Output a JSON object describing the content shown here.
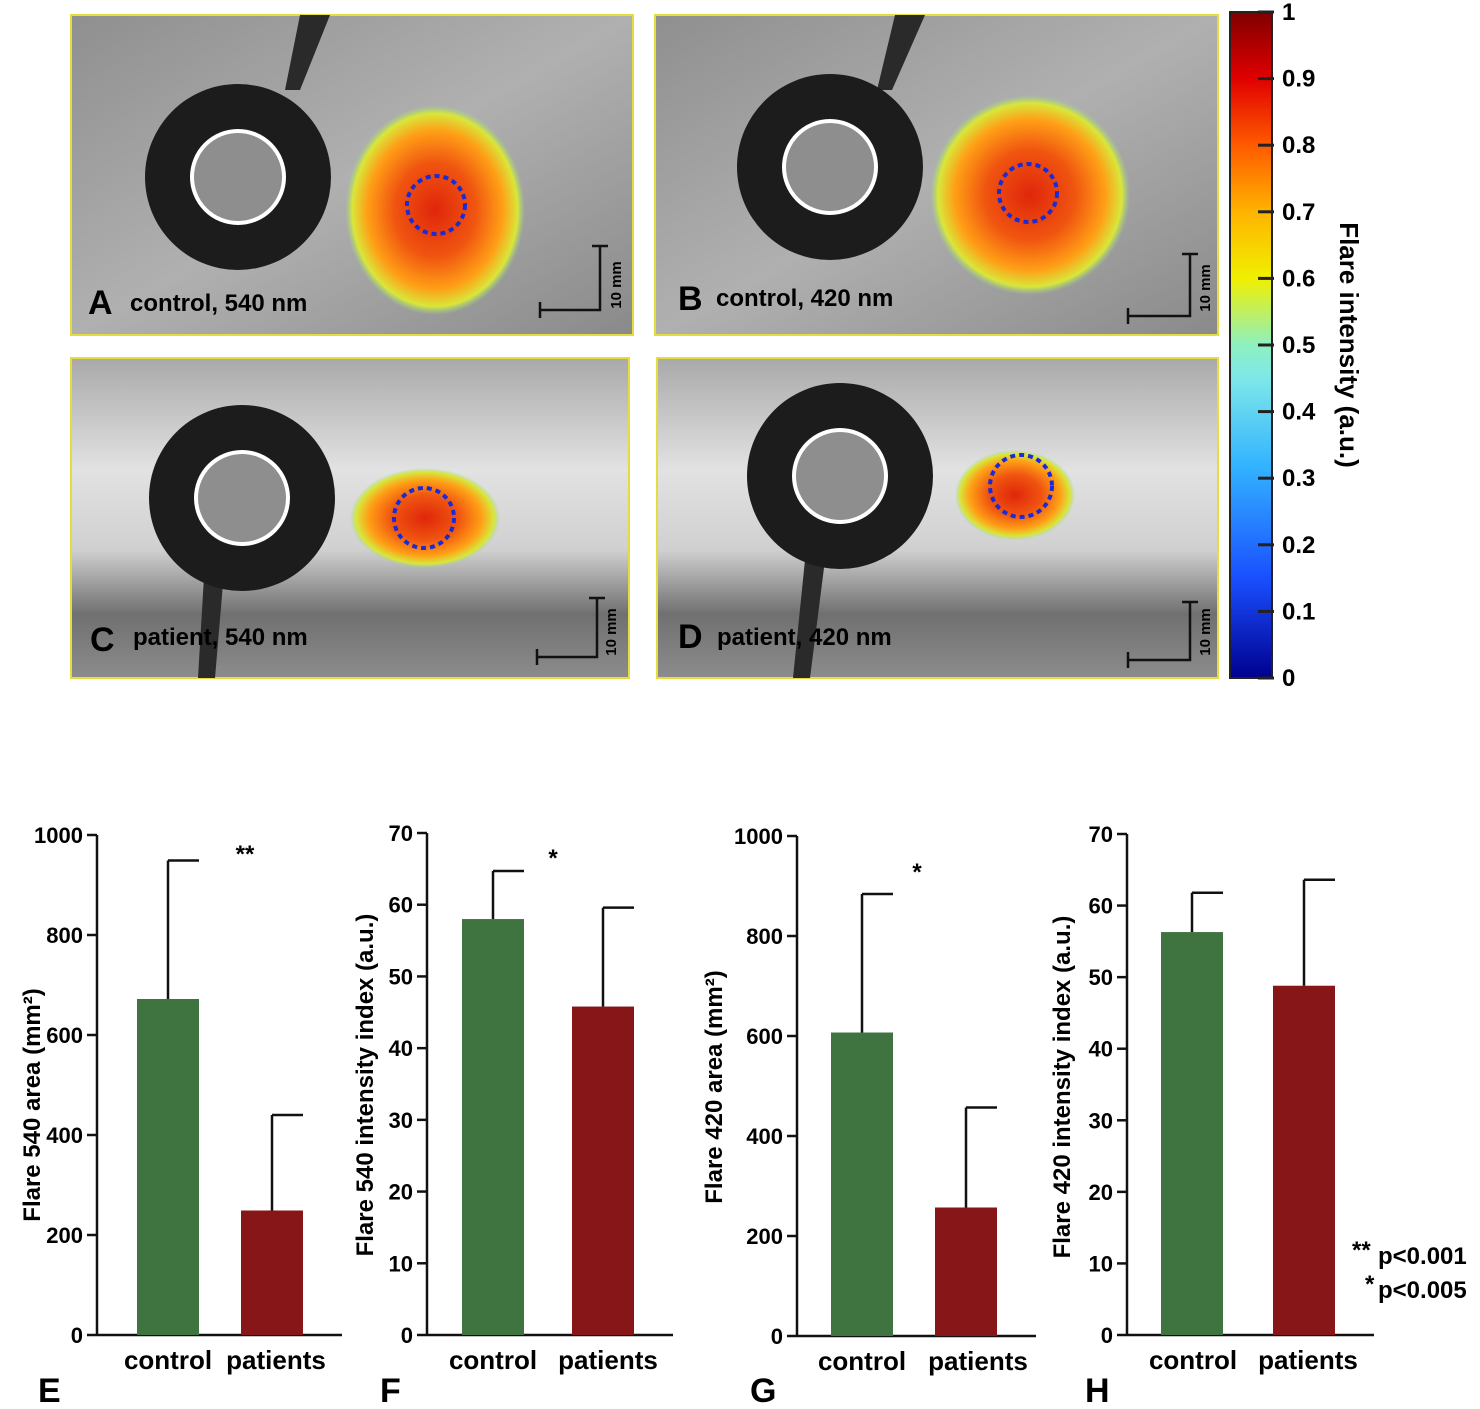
{
  "panels": [
    {
      "id": "A",
      "caption": "control, 540 nm",
      "scale": "10 mm"
    },
    {
      "id": "B",
      "caption": "control, 420 nm",
      "scale": "10 mm"
    },
    {
      "id": "C",
      "caption": "patient, 540 nm",
      "scale": "10 mm"
    },
    {
      "id": "D",
      "caption": "patient, 420 nm",
      "scale": "10 mm"
    }
  ],
  "colorbar": {
    "label": "Flare intensity (a.u.)",
    "ticks": [
      "0",
      "0.1",
      "0.2",
      "0.3",
      "0.4",
      "0.5",
      "0.6",
      "0.7",
      "0.8",
      "0.9",
      "1"
    ],
    "range": [
      0,
      1
    ]
  },
  "colors": {
    "control": "#3f7440",
    "patients": "#861617",
    "roi": "#1a2bd6"
  },
  "chart_data": [
    {
      "type": "bar",
      "letter": "E",
      "categories": [
        "control",
        "patients"
      ],
      "values": [
        672,
        249
      ],
      "errors": [
        277,
        191
      ],
      "ylabel": "Flare 540 area (mm²)",
      "ylim": [
        0,
        1000
      ],
      "yticks": [
        "0",
        "200",
        "400",
        "600",
        "800",
        "1000"
      ],
      "significance": "**"
    },
    {
      "type": "bar",
      "letter": "F",
      "categories": [
        "control",
        "patients"
      ],
      "values": [
        58,
        45.8
      ],
      "errors": [
        6.7,
        13.8
      ],
      "ylabel": "Flare 540 intensity index (a.u.)",
      "ylim": [
        0,
        70
      ],
      "yticks": [
        "0",
        "10",
        "20",
        "30",
        "40",
        "50",
        "60",
        "70"
      ],
      "significance": "*"
    },
    {
      "type": "bar",
      "letter": "G",
      "categories": [
        "control",
        "patients"
      ],
      "values": [
        607,
        257
      ],
      "errors": [
        277,
        200
      ],
      "ylabel": "Flare 420 area (mm²)",
      "ylim": [
        0,
        1000
      ],
      "yticks": [
        "0",
        "200",
        "400",
        "600",
        "800",
        "1000"
      ],
      "significance": "*"
    },
    {
      "type": "bar",
      "letter": "H",
      "categories": [
        "control",
        "patients"
      ],
      "values": [
        56.3,
        48.8
      ],
      "errors": [
        5.5,
        14.8
      ],
      "ylabel": "Flare 420 intensity index (a.u.)",
      "ylim": [
        0,
        70
      ],
      "yticks": [
        "0",
        "10",
        "20",
        "30",
        "40",
        "50",
        "60",
        "70"
      ],
      "significance": ""
    }
  ],
  "legend": [
    {
      "stars": "**",
      "text": "p<0.001"
    },
    {
      "stars": "*",
      "text": "p<0.005"
    }
  ]
}
